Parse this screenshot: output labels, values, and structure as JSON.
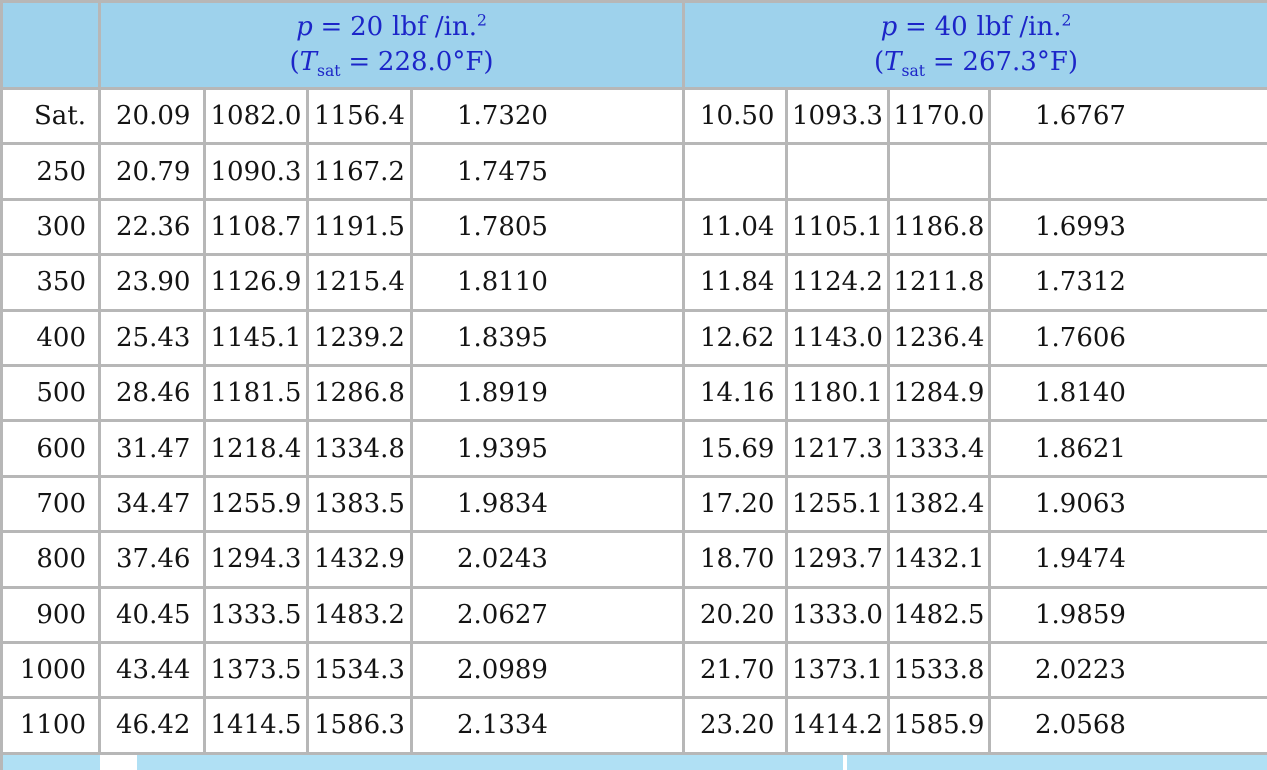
{
  "header": {
    "sections": [
      {
        "p_symbol": "p",
        "equals": "=",
        "p_value": "20",
        "p_unit": "lbf /in.",
        "p_exponent": "2",
        "tsat_open": "(",
        "tsat_symbol": "T",
        "tsat_sub": "sat",
        "tsat_equals": "=",
        "tsat_value": "228.0",
        "tsat_unit": "°F",
        "tsat_close": ")"
      },
      {
        "p_symbol": "p",
        "equals": "=",
        "p_value": "40",
        "p_unit": "lbf /in.",
        "p_exponent": "2",
        "tsat_open": "(",
        "tsat_symbol": "T",
        "tsat_sub": "sat",
        "tsat_equals": "=",
        "tsat_value": "267.3",
        "tsat_unit": "°F",
        "tsat_close": ")"
      }
    ]
  },
  "rows": [
    {
      "temp": "Sat.",
      "cells": [
        "20.09",
        "1082.0",
        "1156.4",
        "1.7320",
        "10.50",
        "1093.3",
        "1170.0",
        "1.6767"
      ]
    },
    {
      "temp": "250",
      "cells": [
        "20.79",
        "1090.3",
        "1167.2",
        "1.7475",
        "",
        "",
        "",
        ""
      ]
    },
    {
      "temp": "300",
      "cells": [
        "22.36",
        "1108.7",
        "1191.5",
        "1.7805",
        "11.04",
        "1105.1",
        "1186.8",
        "1.6993"
      ]
    },
    {
      "temp": "350",
      "cells": [
        "23.90",
        "1126.9",
        "1215.4",
        "1.8110",
        "11.84",
        "1124.2",
        "1211.8",
        "1.7312"
      ]
    },
    {
      "temp": "400",
      "cells": [
        "25.43",
        "1145.1",
        "1239.2",
        "1.8395",
        "12.62",
        "1143.0",
        "1236.4",
        "1.7606"
      ]
    },
    {
      "temp": "500",
      "cells": [
        "28.46",
        "1181.5",
        "1286.8",
        "1.8919",
        "14.16",
        "1180.1",
        "1284.9",
        "1.8140"
      ]
    },
    {
      "temp": "600",
      "cells": [
        "31.47",
        "1218.4",
        "1334.8",
        "1.9395",
        "15.69",
        "1217.3",
        "1333.4",
        "1.8621"
      ]
    },
    {
      "temp": "700",
      "cells": [
        "34.47",
        "1255.9",
        "1383.5",
        "1.9834",
        "17.20",
        "1255.1",
        "1382.4",
        "1.9063"
      ]
    },
    {
      "temp": "800",
      "cells": [
        "37.46",
        "1294.3",
        "1432.9",
        "2.0243",
        "18.70",
        "1293.7",
        "1432.1",
        "1.9474"
      ]
    },
    {
      "temp": "900",
      "cells": [
        "40.45",
        "1333.5",
        "1483.2",
        "2.0627",
        "20.20",
        "1333.0",
        "1482.5",
        "1.9859"
      ]
    },
    {
      "temp": "1000",
      "cells": [
        "43.44",
        "1373.5",
        "1534.3",
        "2.0989",
        "21.70",
        "1373.1",
        "1533.8",
        "2.0223"
      ]
    },
    {
      "temp": "1100",
      "cells": [
        "46.42",
        "1414.5",
        "1586.3",
        "2.1334",
        "23.20",
        "1414.2",
        "1585.9",
        "2.0568"
      ]
    }
  ],
  "colors": {
    "header_bg": "#9ed2ec",
    "header_text": "#1c25c8",
    "grid_line": "#b7b7b7",
    "footer_strip": "#b0e0f4",
    "cell_bg": "#ffffff",
    "body_text": "#141414"
  }
}
